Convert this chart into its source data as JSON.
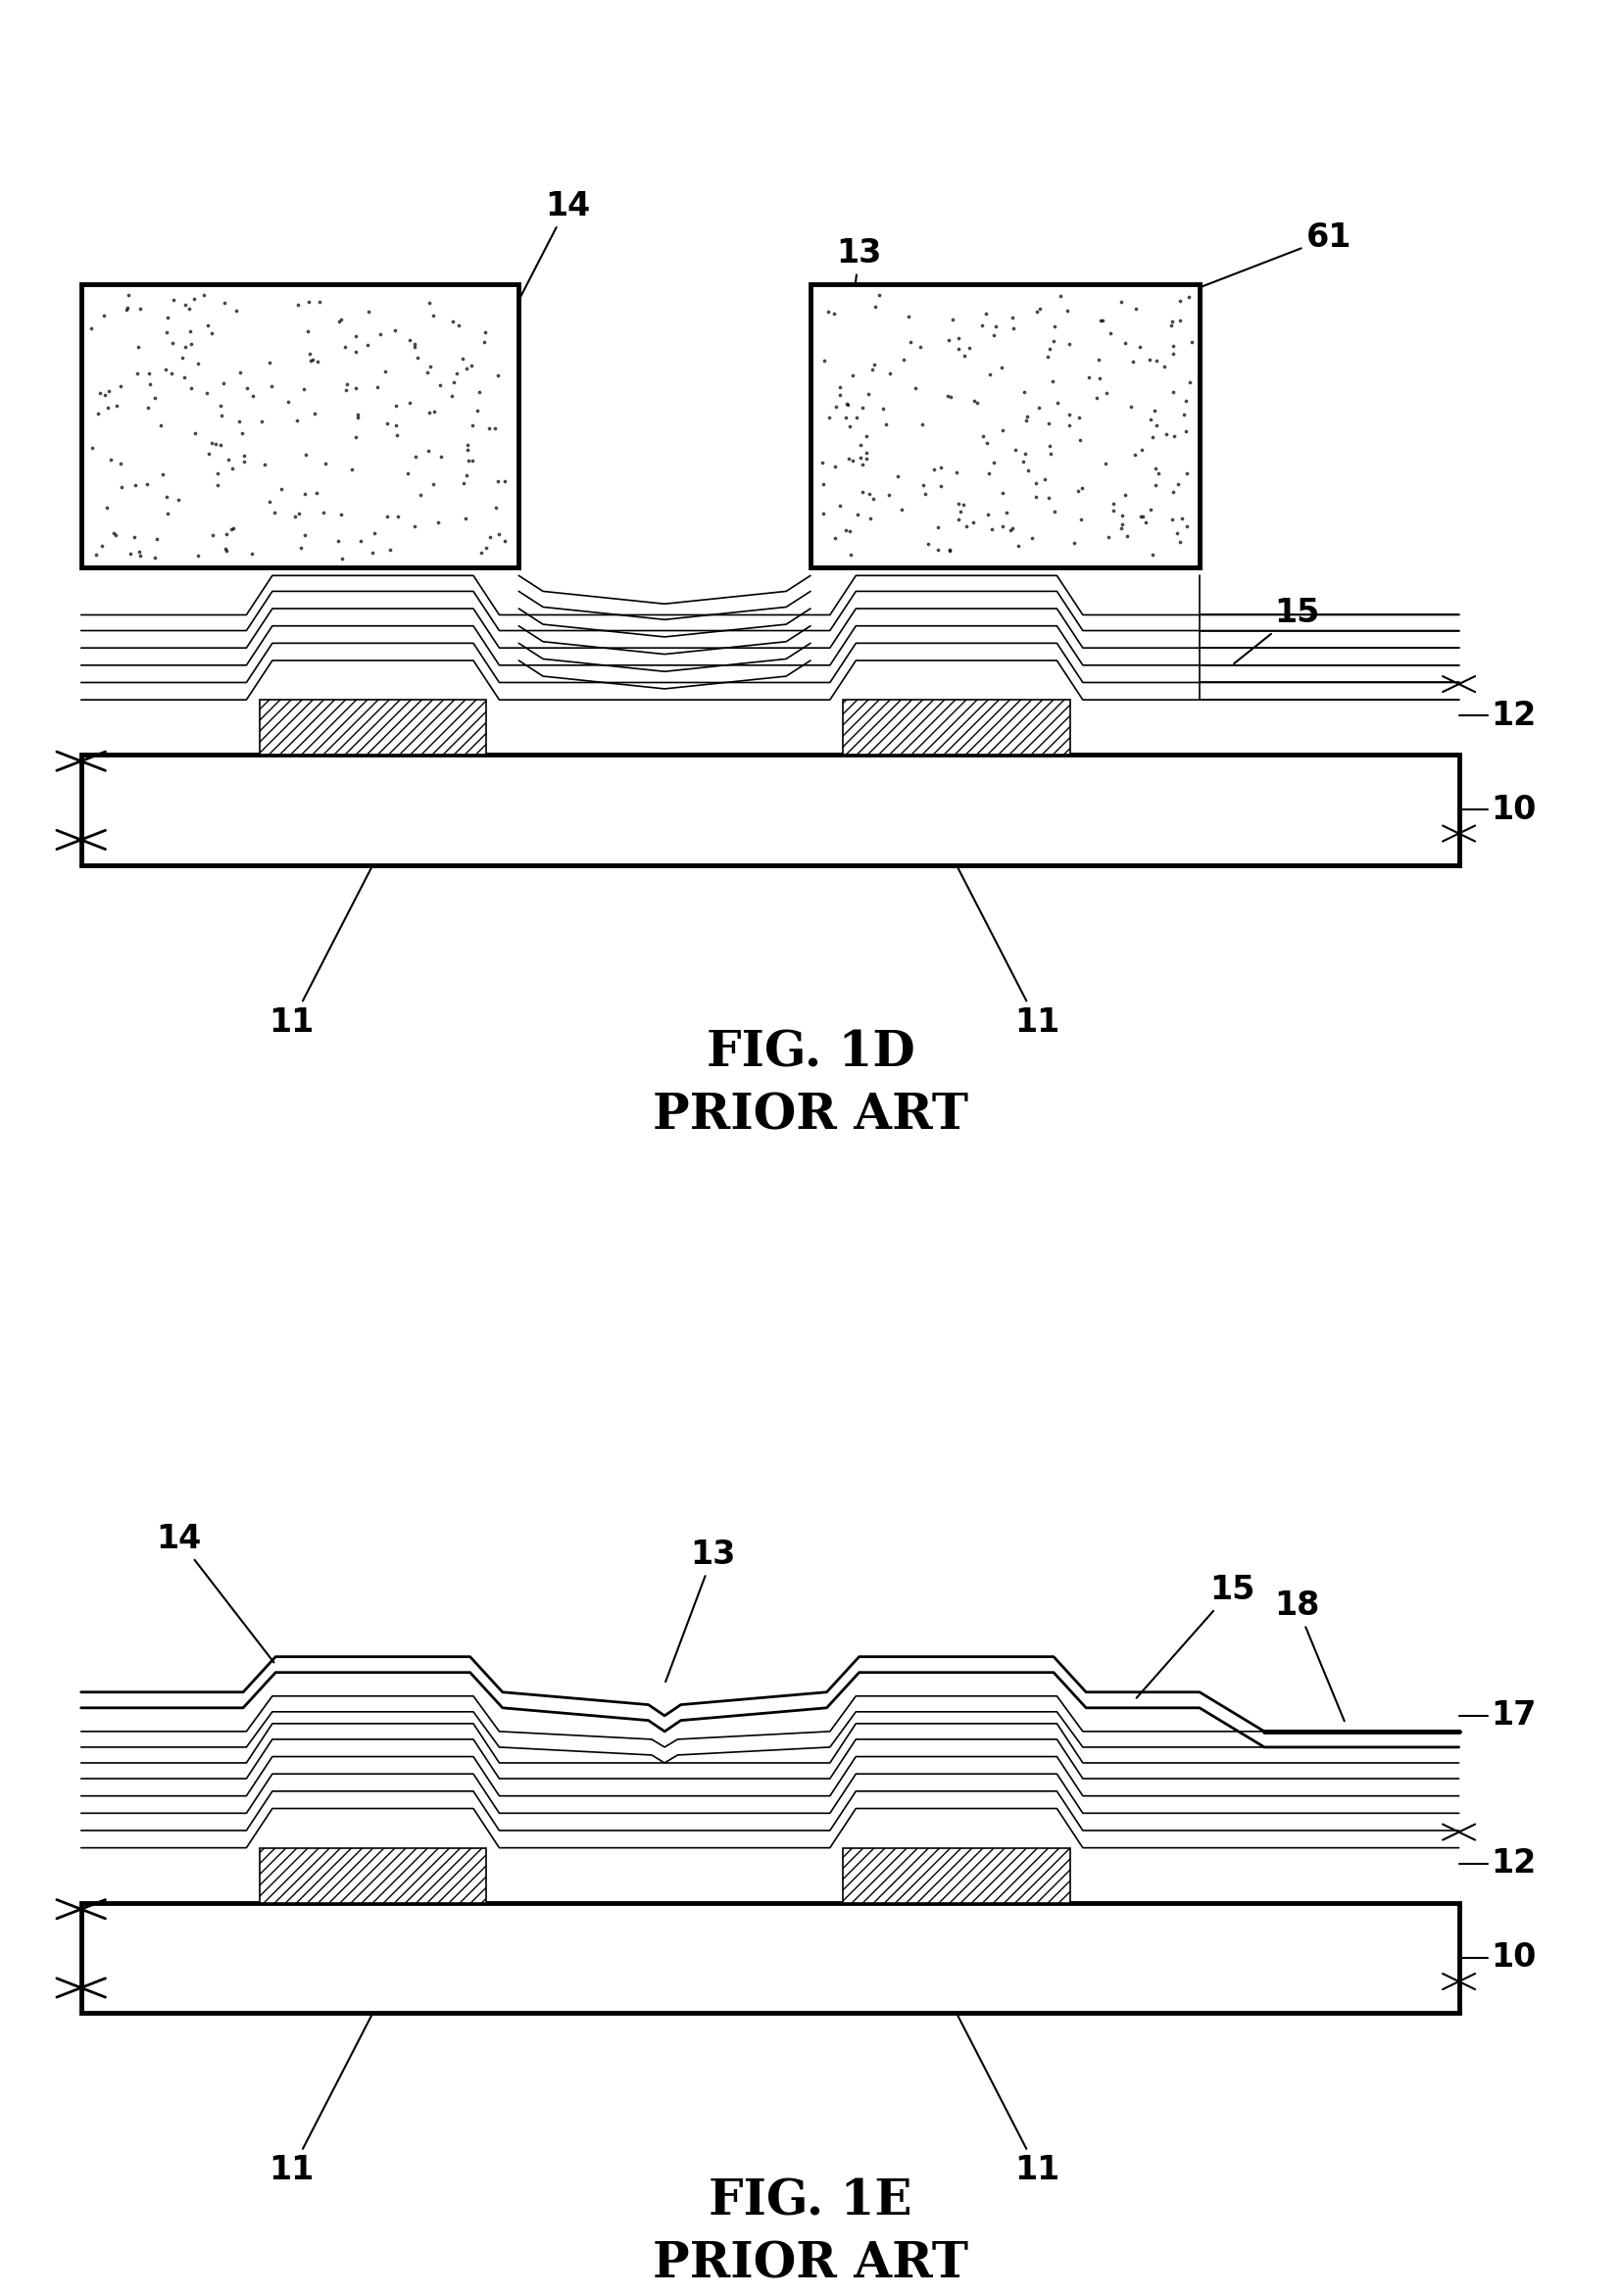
{
  "fig_title_1": "FIG. 1D",
  "fig_subtitle_1": "PRIOR ART",
  "fig_title_2": "FIG. 1E",
  "fig_subtitle_2": "PRIOR ART",
  "background_color": "#ffffff",
  "line_color": "#000000",
  "title_fontsize": 36,
  "label_fontsize": 24,
  "lw_thin": 1.2,
  "lw_med": 2.0,
  "lw_thick": 3.5
}
